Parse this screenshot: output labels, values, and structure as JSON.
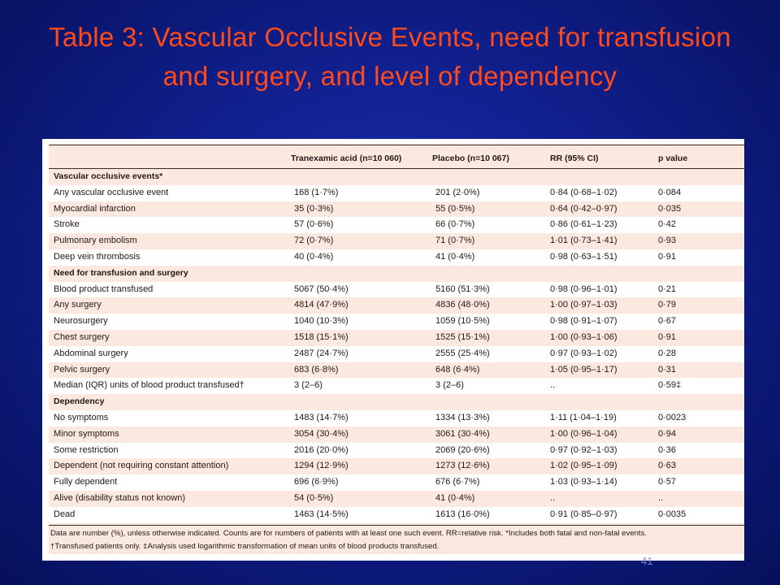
{
  "slide": {
    "title": "Table 3: Vascular Occlusive Events, need for transfusion and surgery, and level of dependency",
    "page_number": "41"
  },
  "table": {
    "columns": [
      "",
      "Tranexamic acid (n=10 060)",
      "Placebo (n=10 067)",
      "RR (95% CI)",
      "p value"
    ],
    "sections": [
      {
        "heading": "Vascular occlusive events*",
        "rows": [
          [
            "Any vascular occlusive event",
            "168 (1·7%)",
            "201 (2·0%)",
            "0·84 (0·68–1·02)",
            "0·084"
          ],
          [
            "Myocardial infarction",
            "35 (0·3%)",
            "55 (0·5%)",
            "0·64 (0·42–0·97)",
            "0·035"
          ],
          [
            "Stroke",
            "57 (0·6%)",
            "66 (0·7%)",
            "0·86 (0·61–1·23)",
            "0·42"
          ],
          [
            "Pulmonary embolism",
            "72 (0·7%)",
            "71 (0·7%)",
            "1·01 (0·73–1·41)",
            "0·93"
          ],
          [
            "Deep vein thrombosis",
            "40 (0·4%)",
            "41 (0·4%)",
            "0·98 (0·63–1·51)",
            "0·91"
          ]
        ]
      },
      {
        "heading": "Need for transfusion and surgery",
        "rows": [
          [
            "Blood product transfused",
            "5067 (50·4%)",
            "5160 (51·3%)",
            "0·98 (0·96–1·01)",
            "0·21"
          ],
          [
            "Any surgery",
            "4814 (47·9%)",
            "4836 (48·0%)",
            "1·00 (0·97–1·03)",
            "0·79"
          ],
          [
            "Neurosurgery",
            "1040 (10·3%)",
            "1059 (10·5%)",
            "0·98 (0·91–1·07)",
            "0·67"
          ],
          [
            "Chest surgery",
            "1518 (15·1%)",
            "1525 (15·1%)",
            "1·00 (0·93–1·06)",
            "0·91"
          ],
          [
            "Abdominal surgery",
            "2487 (24·7%)",
            "2555 (25·4%)",
            "0·97 (0·93–1·02)",
            "0·28"
          ],
          [
            "Pelvic surgery",
            "683 (6·8%)",
            "648 (6·4%)",
            "1·05 (0·95–1·17)",
            "0·31"
          ],
          [
            "Median (IQR) units of blood product transfused†",
            "3 (2–6)",
            "3 (2–6)",
            "..",
            "0·59‡"
          ]
        ]
      },
      {
        "heading": "Dependency",
        "rows": [
          [
            "No symptoms",
            "1483 (14·7%)",
            "1334 (13·3%)",
            "1·11 (1·04–1·19)",
            "0·0023"
          ],
          [
            "Minor symptoms",
            "3054 (30·4%)",
            "3061 (30·4%)",
            "1·00 (0·96–1·04)",
            "0·94"
          ],
          [
            "Some restriction",
            "2016 (20·0%)",
            "2069 (20·6%)",
            "0·97 (0·92–1·03)",
            "0·36"
          ],
          [
            "Dependent (not requiring constant attention)",
            "1294 (12·9%)",
            "1273 (12·6%)",
            "1·02 (0·95–1·09)",
            "0·63"
          ],
          [
            "Fully dependent",
            "696 (6·9%)",
            "676 (6·7%)",
            "1·03 (0·93–1·14)",
            "0·57"
          ],
          [
            "Alive (disability status not known)",
            "54 (0·5%)",
            "41 (0·4%)",
            "..",
            ".."
          ],
          [
            "Dead",
            "1463 (14·5%)",
            "1613 (16·0%)",
            "0·91 (0·85–0·97)",
            "0·0035"
          ]
        ]
      }
    ],
    "footnotes": [
      "Data are number (%), unless otherwise indicated. Counts are for numbers of patients with at least one such event. RR=relative risk. *Includes both fatal and non-fatal events.",
      "†Transfused patients only. ‡Analysis used logarithmic transformation of mean units of blood products transfused."
    ]
  },
  "colors": {
    "title": "#ff4a1c",
    "background": "#101f8c",
    "table_tint": "#fbe9e0"
  }
}
